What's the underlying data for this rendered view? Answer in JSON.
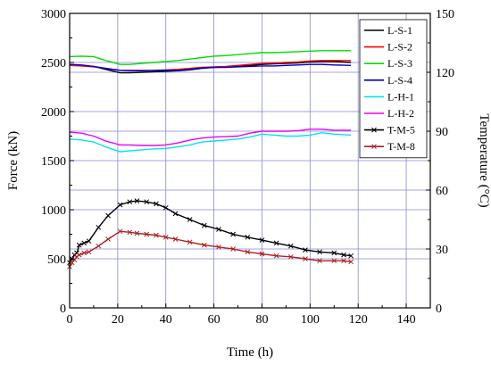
{
  "chart_data": {
    "type": "line",
    "title": "",
    "xlabel": "Time (h)",
    "ylabel": "Force (kN)",
    "y2label": "Temperature (°C)",
    "xlim": [
      0,
      150
    ],
    "ylim": [
      0,
      3000
    ],
    "y2lim": [
      0,
      150
    ],
    "xticks": [
      "0",
      "20",
      "40",
      "60",
      "80",
      "100",
      "120",
      "140"
    ],
    "yticks": [
      "0",
      "500",
      "1000",
      "1500",
      "2000",
      "2500",
      "3000"
    ],
    "y2ticks": [
      "0",
      "30",
      "60",
      "90",
      "120",
      "150"
    ],
    "grid": true,
    "legend_position": "top-right",
    "series": [
      {
        "name": "L-S-1",
        "color": "#000000",
        "axis": "left",
        "marker": "none",
        "x": [
          0,
          5,
          10,
          15,
          21,
          25,
          30,
          35,
          40,
          45,
          50,
          55,
          60,
          65,
          70,
          75,
          80,
          85,
          90,
          95,
          100,
          105,
          110,
          117
        ],
        "y": [
          2480,
          2470,
          2460,
          2430,
          2395,
          2395,
          2400,
          2405,
          2410,
          2415,
          2425,
          2440,
          2450,
          2455,
          2460,
          2470,
          2480,
          2485,
          2490,
          2495,
          2505,
          2510,
          2510,
          2500
        ]
      },
      {
        "name": "L-S-2",
        "color": "#ff0000",
        "axis": "left",
        "marker": "none",
        "x": [
          0,
          5,
          10,
          15,
          21,
          25,
          30,
          35,
          40,
          45,
          50,
          55,
          60,
          65,
          70,
          75,
          80,
          85,
          90,
          95,
          100,
          105,
          110,
          117
        ],
        "y": [
          2470,
          2465,
          2455,
          2440,
          2420,
          2420,
          2420,
          2420,
          2425,
          2430,
          2440,
          2450,
          2455,
          2460,
          2470,
          2480,
          2490,
          2495,
          2500,
          2505,
          2515,
          2520,
          2520,
          2520
        ]
      },
      {
        "name": "L-S-3",
        "color": "#00dd00",
        "axis": "left",
        "marker": "none",
        "x": [
          0,
          5,
          10,
          15,
          21,
          25,
          30,
          35,
          40,
          45,
          50,
          55,
          60,
          65,
          70,
          75,
          80,
          85,
          90,
          95,
          100,
          105,
          110,
          117
        ],
        "y": [
          2560,
          2565,
          2560,
          2520,
          2480,
          2480,
          2490,
          2500,
          2510,
          2520,
          2535,
          2550,
          2565,
          2570,
          2580,
          2590,
          2600,
          2600,
          2605,
          2610,
          2615,
          2620,
          2620,
          2620
        ]
      },
      {
        "name": "L-S-4",
        "color": "#0000cc",
        "axis": "left",
        "marker": "none",
        "x": [
          0,
          5,
          10,
          15,
          21,
          25,
          30,
          35,
          40,
          45,
          50,
          55,
          60,
          65,
          70,
          75,
          80,
          85,
          90,
          95,
          100,
          105,
          110,
          117
        ],
        "y": [
          2480,
          2475,
          2460,
          2440,
          2420,
          2415,
          2415,
          2420,
          2420,
          2420,
          2430,
          2445,
          2450,
          2450,
          2455,
          2460,
          2465,
          2465,
          2470,
          2475,
          2480,
          2480,
          2475,
          2470
        ]
      },
      {
        "name": "L-H-1",
        "color": "#00e5ee",
        "axis": "left",
        "marker": "none",
        "x": [
          0,
          5,
          10,
          15,
          21,
          25,
          30,
          35,
          40,
          45,
          50,
          55,
          60,
          65,
          70,
          75,
          80,
          85,
          90,
          95,
          100,
          105,
          110,
          117
        ],
        "y": [
          1720,
          1710,
          1690,
          1640,
          1590,
          1600,
          1610,
          1620,
          1625,
          1640,
          1660,
          1690,
          1700,
          1710,
          1720,
          1740,
          1770,
          1760,
          1750,
          1750,
          1760,
          1785,
          1770,
          1760
        ]
      },
      {
        "name": "L-H-2",
        "color": "#ee00ee",
        "axis": "left",
        "marker": "none",
        "x": [
          0,
          5,
          10,
          15,
          21,
          25,
          30,
          35,
          40,
          45,
          50,
          55,
          60,
          65,
          70,
          75,
          80,
          85,
          90,
          95,
          100,
          105,
          110,
          117
        ],
        "y": [
          1790,
          1780,
          1750,
          1700,
          1660,
          1660,
          1655,
          1655,
          1660,
          1680,
          1710,
          1730,
          1740,
          1745,
          1750,
          1780,
          1800,
          1800,
          1800,
          1805,
          1820,
          1820,
          1810,
          1810
        ]
      },
      {
        "name": "T-M-5",
        "color": "#000000",
        "axis": "right",
        "marker": "x",
        "x": [
          0,
          1,
          2,
          3,
          4,
          6,
          8,
          12,
          16,
          21,
          25,
          28,
          32,
          36,
          40,
          44,
          50,
          56,
          62,
          68,
          74,
          80,
          86,
          92,
          98,
          104,
          110,
          114,
          117
        ],
        "y": [
          23,
          25,
          27,
          28,
          32,
          33,
          34,
          41,
          47,
          52.5,
          54,
          54.5,
          54,
          53,
          51,
          48,
          45,
          42,
          40,
          37.5,
          36,
          34.5,
          33,
          31.5,
          29.5,
          28.5,
          28,
          27,
          26.5
        ]
      },
      {
        "name": "T-M-8",
        "color": "#aa2222",
        "axis": "right",
        "marker": "x",
        "x": [
          0,
          1,
          2,
          3,
          4,
          6,
          8,
          12,
          16,
          21,
          25,
          28,
          32,
          36,
          40,
          44,
          50,
          56,
          62,
          68,
          74,
          80,
          86,
          92,
          98,
          104,
          110,
          114,
          117
        ],
        "y": [
          21,
          23,
          24.5,
          26,
          27,
          28,
          28.5,
          31.5,
          35,
          39,
          38.5,
          38,
          37.5,
          37,
          36,
          35,
          33.5,
          32,
          31,
          30,
          28.5,
          27.5,
          26.5,
          26,
          25,
          24,
          24,
          24,
          23.5
        ]
      }
    ]
  }
}
